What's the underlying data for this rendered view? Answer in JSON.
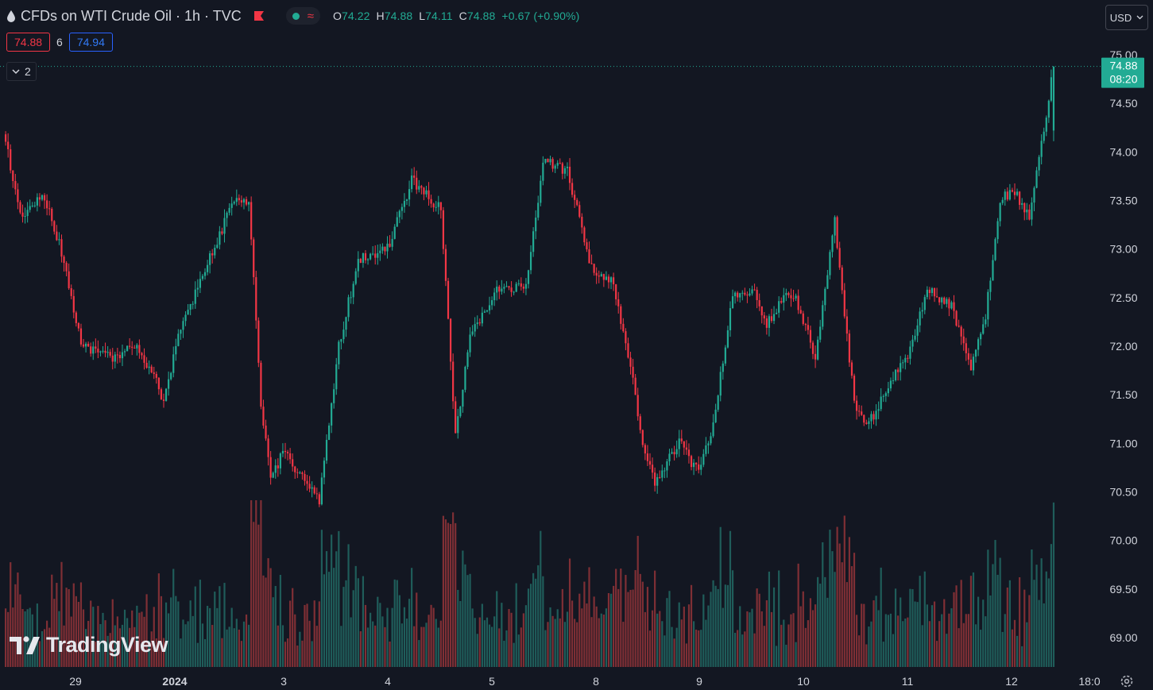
{
  "header": {
    "title": "CFDs on WTI Crude Oil · 1h · TVC",
    "ohlc": [
      {
        "key": "O",
        "value": "74.22"
      },
      {
        "key": "H",
        "value": "74.88"
      },
      {
        "key": "L",
        "value": "74.11"
      },
      {
        "key": "C",
        "value": "74.88"
      }
    ],
    "change": "+0.67 (+0.90%)",
    "bid": "74.88",
    "spread": "6",
    "ask": "74.94",
    "indicators_count": "2",
    "currency": "USD",
    "watermark": "TradingView",
    "icons": [
      "drop-icon",
      "flag-icon",
      "status-dot-icon",
      "wave-icon",
      "chevron-down-icon",
      "gear-icon",
      "tradingview-logo-icon"
    ]
  },
  "colors": {
    "background": "#131722",
    "up": "#22ab94",
    "down": "#f23645",
    "up_volume": "#1f5d5a",
    "down_volume": "#7f2f35",
    "ask_border": "#2962ff",
    "text": "#d1d4dc"
  },
  "chart_data": {
    "type": "candlestick",
    "yticks": [
      "75.00",
      "74.50",
      "74.00",
      "73.50",
      "73.00",
      "72.50",
      "72.00",
      "71.50",
      "71.00",
      "70.50",
      "70.00",
      "69.50",
      "69.00"
    ],
    "ylim": [
      68.7,
      75.18
    ],
    "xticks": [
      "29",
      "2024",
      "3",
      "4",
      "5",
      "8",
      "9",
      "10",
      "11",
      "12",
      "18:0"
    ],
    "last_price": "74.88",
    "countdown": "08:20",
    "series": [
      {
        "name": "price",
        "kind": "candlestick",
        "knots": [
          [
            0,
            74.2
          ],
          [
            8,
            73.3
          ],
          [
            16,
            73.6
          ],
          [
            25,
            72.9
          ],
          [
            32,
            72.0
          ],
          [
            45,
            71.9
          ],
          [
            55,
            72.0
          ],
          [
            62,
            71.7
          ],
          [
            66,
            71.4
          ],
          [
            72,
            72.1
          ],
          [
            85,
            72.9
          ],
          [
            95,
            73.5
          ],
          [
            101,
            73.5
          ],
          [
            106,
            71.4
          ],
          [
            110,
            70.6
          ],
          [
            115,
            70.9
          ],
          [
            125,
            70.6
          ],
          [
            130,
            70.4
          ],
          [
            138,
            72.0
          ],
          [
            146,
            72.9
          ],
          [
            158,
            73.0
          ],
          [
            168,
            73.7
          ],
          [
            180,
            73.4
          ],
          [
            186,
            71.1
          ],
          [
            192,
            72.1
          ],
          [
            204,
            72.6
          ],
          [
            215,
            72.6
          ],
          [
            222,
            73.9
          ],
          [
            232,
            73.8
          ],
          [
            242,
            72.8
          ],
          [
            250,
            72.7
          ],
          [
            258,
            71.8
          ],
          [
            262,
            71.1
          ],
          [
            268,
            70.6
          ],
          [
            278,
            71.0
          ],
          [
            286,
            70.7
          ],
          [
            292,
            71.2
          ],
          [
            300,
            72.5
          ],
          [
            308,
            72.6
          ],
          [
            314,
            72.2
          ],
          [
            320,
            72.5
          ],
          [
            326,
            72.5
          ],
          [
            334,
            71.9
          ],
          [
            342,
            73.3
          ],
          [
            350,
            71.4
          ],
          [
            356,
            71.2
          ],
          [
            364,
            71.6
          ],
          [
            372,
            71.9
          ],
          [
            380,
            72.6
          ],
          [
            390,
            72.4
          ],
          [
            398,
            71.8
          ],
          [
            404,
            72.3
          ],
          [
            410,
            73.5
          ],
          [
            416,
            73.6
          ],
          [
            422,
            73.3
          ],
          [
            428,
            74.22
          ],
          [
            432,
            74.88
          ]
        ]
      },
      {
        "name": "volume",
        "kind": "histogram"
      }
    ],
    "candle_count": 432
  }
}
